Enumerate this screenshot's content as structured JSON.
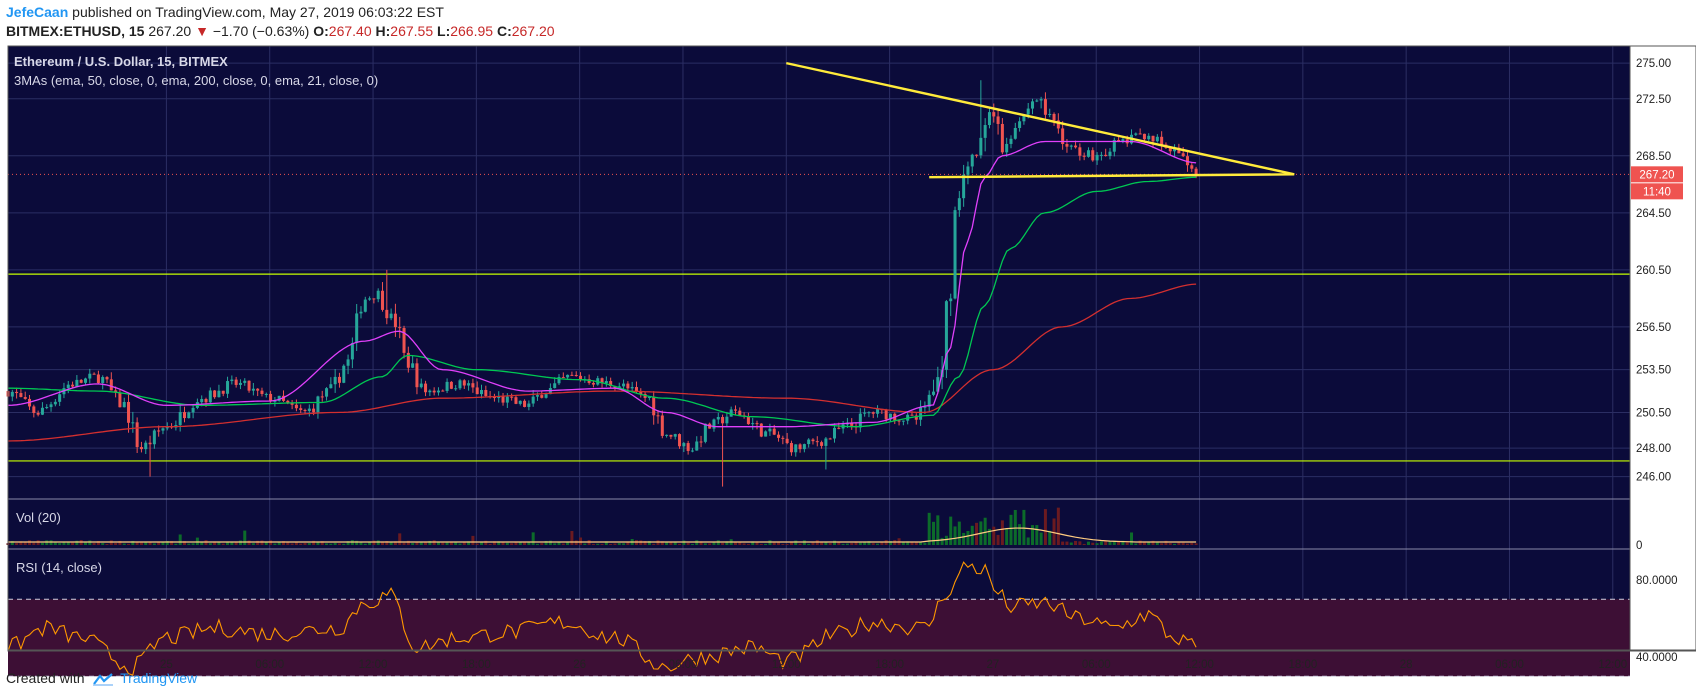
{
  "header": {
    "author": "JefeCaan",
    "published_text": "published on TradingView.com, May 27, 2019 06:03:22 EST",
    "symbol": "BITMEX:ETHUSD, 15",
    "last": "267.20",
    "change_arrow": "▼",
    "change": "−1.70 (−0.63%)",
    "o_label": "O:",
    "o": "267.40",
    "h_label": "H:",
    "h": "267.55",
    "l_label": "L:",
    "l": "266.95",
    "c_label": "C:",
    "c": "267.20"
  },
  "pane": {
    "title": "Ethereum / U.S. Dollar, 15, BITMEX",
    "ma_label": "3MAs (ema, 50, close, 0, ema, 200, close, 0, ema, 21, close, 0)",
    "vol_label": "Vol (20)",
    "rsi_label": "RSI (14, close)",
    "price_badge": "267.20",
    "time_badge": "11:40",
    "vol_zero": "0"
  },
  "footer": {
    "created_with": "Created with",
    "brand": "TradingView"
  },
  "colors": {
    "background": "#0b0b3a",
    "grid": "#2b2e63",
    "candle_up": "#26a69a",
    "candle_down": "#ef5350",
    "ema21": "#e040fb",
    "ema50": "#00c853",
    "ema200": "#d32f2f",
    "trendline": "#ffeb3b",
    "support": "#c6ff00",
    "rsi": "#ff9800",
    "rsi_band": "#3d0f35",
    "badge": "#ef5350"
  },
  "chart_data": {
    "type": "candlestick",
    "title": "Ethereum / U.S. Dollar, 15, BITMEX",
    "y_ticks": [
      275.0,
      272.5,
      268.5,
      264.5,
      260.5,
      256.5,
      253.5,
      250.5,
      248.0,
      246.0
    ],
    "y_tick_labels": [
      "275.00",
      "272.50",
      "268.50",
      "264.50",
      "260.50",
      "256.50",
      "253.50",
      "250.50",
      "248.00",
      "246.00"
    ],
    "ylim": [
      244.5,
      276.2
    ],
    "x_tick_labels": [
      "25",
      "06:00",
      "12:00",
      "18:00",
      "26",
      "06:00",
      "12:00",
      "18:00",
      "27",
      "06:00",
      "12:00",
      "18:00",
      "28",
      "06:00",
      "12:00"
    ],
    "x_tick_hours": [
      24,
      30,
      36,
      42,
      48,
      54,
      60,
      66,
      72,
      78,
      84,
      90,
      96,
      102,
      108
    ],
    "x_range_hours": [
      14.8,
      109
    ],
    "last_bar_hour": 83.9,
    "price_keyframes": [
      [
        14.8,
        252
      ],
      [
        16.5,
        250.5
      ],
      [
        18.5,
        252.5
      ],
      [
        20,
        253
      ],
      [
        21.5,
        251
      ],
      [
        22.5,
        248
      ],
      [
        24,
        249.5
      ],
      [
        26,
        251.5
      ],
      [
        28,
        252.5
      ],
      [
        30,
        251.5
      ],
      [
        32,
        250.5
      ],
      [
        33.5,
        252
      ],
      [
        34.5,
        254
      ],
      [
        35.5,
        258.5
      ],
      [
        36.2,
        258.8
      ],
      [
        37.2,
        257
      ],
      [
        38,
        254
      ],
      [
        39,
        252
      ],
      [
        41,
        252.5
      ],
      [
        43,
        251.5
      ],
      [
        45,
        251
      ],
      [
        46,
        252
      ],
      [
        47.5,
        253
      ],
      [
        50,
        252.5
      ],
      [
        52,
        251.5
      ],
      [
        53,
        249
      ],
      [
        54.5,
        248
      ],
      [
        55.5,
        249.5
      ],
      [
        57,
        250.5
      ],
      [
        59,
        249
      ],
      [
        60.5,
        248
      ],
      [
        62,
        248.5
      ],
      [
        63.5,
        249.5
      ],
      [
        65,
        250.5
      ],
      [
        67.5,
        250
      ],
      [
        68.5,
        251.5
      ],
      [
        69,
        254
      ],
      [
        69.5,
        260
      ],
      [
        70,
        266
      ],
      [
        71,
        268.5
      ],
      [
        71.5,
        270
      ],
      [
        72,
        272.5
      ],
      [
        72.5,
        269
      ],
      [
        73.5,
        271
      ],
      [
        74.5,
        272.5
      ],
      [
        75.5,
        271
      ],
      [
        76.5,
        269
      ],
      [
        78,
        268.5
      ],
      [
        79.5,
        269.5
      ],
      [
        81,
        270
      ],
      [
        82,
        269
      ],
      [
        83,
        268.5
      ],
      [
        83.9,
        267.2
      ]
    ],
    "lows": [
      {
        "hour": 23.0,
        "price": 246.0
      },
      {
        "hour": 56.2,
        "price": 245.3
      },
      {
        "hour": 62.2,
        "price": 246.5
      }
    ],
    "highs": [
      {
        "hour": 36.8,
        "price": 260.5
      },
      {
        "hour": 71.4,
        "price": 273.8
      }
    ],
    "ema21_keyframes": [
      [
        14.8,
        251
      ],
      [
        20,
        252.5
      ],
      [
        24,
        251
      ],
      [
        30,
        251.3
      ],
      [
        35.5,
        255.5
      ],
      [
        37.5,
        256.2
      ],
      [
        40,
        253.5
      ],
      [
        45,
        252
      ],
      [
        50,
        252.2
      ],
      [
        53,
        250.5
      ],
      [
        56,
        249.5
      ],
      [
        60,
        249.5
      ],
      [
        65,
        249.8
      ],
      [
        68.5,
        251
      ],
      [
        69.5,
        255
      ],
      [
        70.5,
        262.5
      ],
      [
        71.5,
        267
      ],
      [
        72.5,
        268.5
      ],
      [
        75,
        269.5
      ],
      [
        80,
        269.5
      ],
      [
        83.9,
        268
      ]
    ],
    "ema50_keyframes": [
      [
        14.8,
        252.2
      ],
      [
        20,
        252
      ],
      [
        26,
        251
      ],
      [
        33,
        251.2
      ],
      [
        36.5,
        253
      ],
      [
        38,
        254.5
      ],
      [
        42,
        253.5
      ],
      [
        48,
        252.8
      ],
      [
        53,
        251.5
      ],
      [
        58,
        250.2
      ],
      [
        64,
        249.5
      ],
      [
        68.5,
        250.3
      ],
      [
        70,
        253
      ],
      [
        71.5,
        258
      ],
      [
        73,
        262
      ],
      [
        75,
        264.5
      ],
      [
        78,
        266
      ],
      [
        81,
        266.7
      ],
      [
        83.9,
        267
      ]
    ],
    "ema200_keyframes": [
      [
        14.8,
        248.5
      ],
      [
        24,
        249.5
      ],
      [
        34,
        250.5
      ],
      [
        40,
        251.5
      ],
      [
        50,
        252
      ],
      [
        60,
        251.5
      ],
      [
        68,
        250.5
      ],
      [
        72,
        253.5
      ],
      [
        76,
        256.5
      ],
      [
        80,
        258.5
      ],
      [
        83.9,
        259.5
      ]
    ],
    "support_lines": [
      260.2,
      247.1
    ],
    "triangle": {
      "top_start": [
        60.0,
        275.0
      ],
      "apex": [
        89.5,
        267.2
      ],
      "bottom_start": [
        68.3,
        267.0
      ]
    },
    "vol_spike_range_hours": [
      68.3,
      76
    ],
    "rsi_levels": [
      70,
      30
    ],
    "rsi_tick_labels": [
      "80.0000",
      "40.0000"
    ],
    "rsi_ticks": [
      80,
      40
    ],
    "rsi_keyframes": [
      [
        14.8,
        45
      ],
      [
        17,
        55
      ],
      [
        19,
        50
      ],
      [
        22,
        35
      ],
      [
        24,
        50
      ],
      [
        27,
        55
      ],
      [
        30,
        52
      ],
      [
        34,
        55
      ],
      [
        35.5,
        68
      ],
      [
        37,
        72
      ],
      [
        38.5,
        45
      ],
      [
        41,
        50
      ],
      [
        44,
        53
      ],
      [
        47,
        58
      ],
      [
        50,
        50
      ],
      [
        53,
        35
      ],
      [
        55,
        40
      ],
      [
        58,
        45
      ],
      [
        60,
        38
      ],
      [
        63,
        52
      ],
      [
        65,
        58
      ],
      [
        68,
        55
      ],
      [
        69.5,
        75
      ],
      [
        70.5,
        88
      ],
      [
        71.5,
        85
      ],
      [
        72.2,
        74
      ],
      [
        73,
        66
      ],
      [
        75,
        68
      ],
      [
        77,
        60
      ],
      [
        79,
        55
      ],
      [
        81,
        62
      ],
      [
        82.5,
        50
      ],
      [
        83.9,
        45
      ]
    ]
  }
}
